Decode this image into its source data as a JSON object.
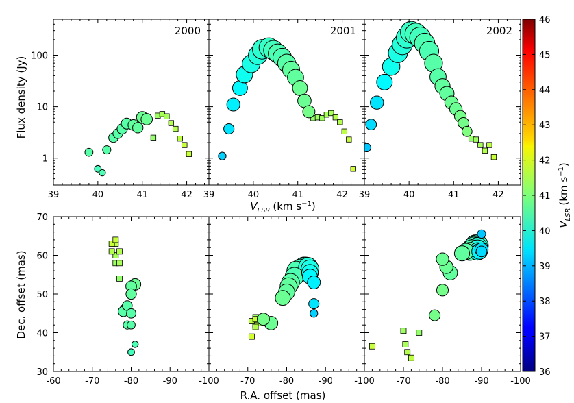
{
  "chart_data": [
    {
      "type": "scatter",
      "panel": "spectrum",
      "epoch": "2000",
      "xlim": [
        39,
        42.5
      ],
      "ylim_log": [
        0.3,
        500
      ],
      "circles": [
        {
          "v": 39.8,
          "f": 1.3,
          "c": 40.6
        },
        {
          "v": 40.0,
          "f": 0.62,
          "c": 40.4
        },
        {
          "v": 40.1,
          "f": 0.52,
          "c": 40.5
        },
        {
          "v": 40.2,
          "f": 1.45,
          "c": 40.6
        },
        {
          "v": 40.35,
          "f": 2.5,
          "c": 40.6
        },
        {
          "v": 40.45,
          "f": 3.0,
          "c": 40.6
        },
        {
          "v": 40.55,
          "f": 3.7,
          "c": 40.6
        },
        {
          "v": 40.65,
          "f": 4.7,
          "c": 40.6
        },
        {
          "v": 40.8,
          "f": 4.4,
          "c": 40.7
        },
        {
          "v": 40.9,
          "f": 3.9,
          "c": 40.7
        },
        {
          "v": 41.0,
          "f": 6.2,
          "c": 40.8
        },
        {
          "v": 41.1,
          "f": 5.7,
          "c": 40.8
        }
      ],
      "squares": [
        {
          "v": 41.25,
          "f": 2.5,
          "c": 41.2
        },
        {
          "v": 41.35,
          "f": 6.7,
          "c": 41.3
        },
        {
          "v": 41.45,
          "f": 7.2,
          "c": 41.4
        },
        {
          "v": 41.55,
          "f": 6.5,
          "c": 41.4
        },
        {
          "v": 41.65,
          "f": 4.8,
          "c": 41.5
        },
        {
          "v": 41.75,
          "f": 3.7,
          "c": 41.5
        },
        {
          "v": 41.85,
          "f": 2.4,
          "c": 41.6
        },
        {
          "v": 41.95,
          "f": 1.8,
          "c": 41.7
        },
        {
          "v": 42.05,
          "f": 1.2,
          "c": 41.7
        }
      ]
    },
    {
      "type": "scatter",
      "panel": "spectrum",
      "epoch": "2001",
      "xlim": [
        39,
        42.5
      ],
      "ylim_log": [
        0.3,
        500
      ],
      "circles": [
        {
          "v": 39.3,
          "f": 1.1,
          "c": 39.3
        },
        {
          "v": 39.45,
          "f": 3.7,
          "c": 39.5
        },
        {
          "v": 39.55,
          "f": 11,
          "c": 39.6
        },
        {
          "v": 39.7,
          "f": 23,
          "c": 39.7
        },
        {
          "v": 39.8,
          "f": 42,
          "c": 39.9
        },
        {
          "v": 39.95,
          "f": 68,
          "c": 40.0
        },
        {
          "v": 40.1,
          "f": 100,
          "c": 40.1
        },
        {
          "v": 40.2,
          "f": 130,
          "c": 40.2
        },
        {
          "v": 40.35,
          "f": 140,
          "c": 40.3
        },
        {
          "v": 40.45,
          "f": 125,
          "c": 40.4
        },
        {
          "v": 40.55,
          "f": 108,
          "c": 40.5
        },
        {
          "v": 40.65,
          "f": 90,
          "c": 40.5
        },
        {
          "v": 40.75,
          "f": 70,
          "c": 40.6
        },
        {
          "v": 40.85,
          "f": 52,
          "c": 40.7
        },
        {
          "v": 40.95,
          "f": 37,
          "c": 40.7
        },
        {
          "v": 41.05,
          "f": 23,
          "c": 40.8
        },
        {
          "v": 41.15,
          "f": 13,
          "c": 40.8
        },
        {
          "v": 41.25,
          "f": 8,
          "c": 40.9
        }
      ],
      "squares": [
        {
          "v": 41.35,
          "f": 6.0,
          "c": 41.2
        },
        {
          "v": 41.45,
          "f": 6.2,
          "c": 41.3
        },
        {
          "v": 41.55,
          "f": 6.0,
          "c": 41.3
        },
        {
          "v": 41.65,
          "f": 7.0,
          "c": 41.4
        },
        {
          "v": 41.75,
          "f": 7.5,
          "c": 41.4
        },
        {
          "v": 41.85,
          "f": 6.2,
          "c": 41.5
        },
        {
          "v": 41.95,
          "f": 5.0,
          "c": 41.5
        },
        {
          "v": 42.05,
          "f": 3.3,
          "c": 41.6
        },
        {
          "v": 42.15,
          "f": 2.3,
          "c": 41.7
        },
        {
          "v": 42.25,
          "f": 0.62,
          "c": 41.8
        }
      ]
    },
    {
      "type": "scatter",
      "panel": "spectrum",
      "epoch": "2002",
      "xlim": [
        39,
        42.5
      ],
      "ylim_log": [
        0.3,
        500
      ],
      "circles": [
        {
          "v": 39.05,
          "f": 1.6,
          "c": 39.2
        },
        {
          "v": 39.15,
          "f": 4.5,
          "c": 39.4
        },
        {
          "v": 39.28,
          "f": 12,
          "c": 39.5
        },
        {
          "v": 39.45,
          "f": 30,
          "c": 39.7
        },
        {
          "v": 39.6,
          "f": 60,
          "c": 39.9
        },
        {
          "v": 39.75,
          "f": 110,
          "c": 40.0
        },
        {
          "v": 39.85,
          "f": 160,
          "c": 40.1
        },
        {
          "v": 39.95,
          "f": 220,
          "c": 40.2
        },
        {
          "v": 40.05,
          "f": 280,
          "c": 40.3
        },
        {
          "v": 40.15,
          "f": 260,
          "c": 40.4
        },
        {
          "v": 40.25,
          "f": 220,
          "c": 40.4
        },
        {
          "v": 40.35,
          "f": 170,
          "c": 40.5
        },
        {
          "v": 40.45,
          "f": 120,
          "c": 40.5
        },
        {
          "v": 40.55,
          "f": 70,
          "c": 40.6
        },
        {
          "v": 40.65,
          "f": 38,
          "c": 40.6
        },
        {
          "v": 40.75,
          "f": 25,
          "c": 40.7
        },
        {
          "v": 40.85,
          "f": 18,
          "c": 40.7
        },
        {
          "v": 40.95,
          "f": 12,
          "c": 40.8
        },
        {
          "v": 41.05,
          "f": 9,
          "c": 40.8
        },
        {
          "v": 41.15,
          "f": 6.5,
          "c": 40.9
        },
        {
          "v": 41.22,
          "f": 4.8,
          "c": 40.9
        },
        {
          "v": 41.3,
          "f": 3.3,
          "c": 41.0
        }
      ],
      "squares": [
        {
          "v": 41.4,
          "f": 2.4,
          "c": 41.2
        },
        {
          "v": 41.5,
          "f": 2.3,
          "c": 41.3
        },
        {
          "v": 41.6,
          "f": 1.8,
          "c": 41.4
        },
        {
          "v": 41.7,
          "f": 1.4,
          "c": 41.5
        },
        {
          "v": 41.8,
          "f": 1.8,
          "c": 41.6
        },
        {
          "v": 41.9,
          "f": 1.05,
          "c": 41.7
        }
      ]
    },
    {
      "type": "scatter",
      "panel": "map",
      "epoch": "2000",
      "xlim": [
        -60,
        -100
      ],
      "ylim": [
        30,
        70
      ],
      "circles": [
        {
          "x": -81,
          "y": 37,
          "f": 0.52,
          "c": 40.5
        },
        {
          "x": -80,
          "y": 35,
          "f": 0.62,
          "c": 40.4
        },
        {
          "x": -80,
          "y": 42,
          "f": 1.3,
          "c": 40.6
        },
        {
          "x": -79,
          "y": 42,
          "f": 1.45,
          "c": 40.6
        },
        {
          "x": -80,
          "y": 45,
          "f": 2.5,
          "c": 40.6
        },
        {
          "x": -79,
          "y": 47,
          "f": 3.0,
          "c": 40.6
        },
        {
          "x": -78,
          "y": 45.5,
          "f": 3.7,
          "c": 40.6
        },
        {
          "x": -78.5,
          "y": 46,
          "f": 4.7,
          "c": 40.6
        },
        {
          "x": -80,
          "y": 52,
          "f": 4.4,
          "c": 40.7
        },
        {
          "x": -81,
          "y": 52.5,
          "f": 6.2,
          "c": 40.8
        },
        {
          "x": -80,
          "y": 50,
          "f": 3.9,
          "c": 40.7
        }
      ],
      "squares": [
        {
          "x": -77,
          "y": 54,
          "f": 2.5,
          "c": 41.2
        },
        {
          "x": -76,
          "y": 58,
          "f": 6.7,
          "c": 41.3
        },
        {
          "x": -77,
          "y": 58,
          "f": 7.2,
          "c": 41.4
        },
        {
          "x": -76,
          "y": 60,
          "f": 6.5,
          "c": 41.4
        },
        {
          "x": -77,
          "y": 61,
          "f": 4.8,
          "c": 41.5
        },
        {
          "x": -75,
          "y": 61,
          "f": 3.7,
          "c": 41.5
        },
        {
          "x": -76,
          "y": 63,
          "f": 2.4,
          "c": 41.6
        },
        {
          "x": -75,
          "y": 63,
          "f": 1.8,
          "c": 41.7
        },
        {
          "x": -76,
          "y": 64,
          "f": 1.2,
          "c": 41.7
        }
      ]
    },
    {
      "type": "scatter",
      "panel": "map",
      "epoch": "2001",
      "xlim": [
        -60,
        -100
      ],
      "ylim": [
        30,
        70
      ],
      "circles": [
        {
          "x": -87,
          "y": 45,
          "f": 1.1,
          "c": 39.3
        },
        {
          "x": -87,
          "y": 47.5,
          "f": 3.7,
          "c": 39.5
        },
        {
          "x": -87,
          "y": 53,
          "f": 11,
          "c": 39.6
        },
        {
          "x": -86,
          "y": 54.5,
          "f": 23,
          "c": 39.7
        },
        {
          "x": -86,
          "y": 55.5,
          "f": 42,
          "c": 39.9
        },
        {
          "x": -86,
          "y": 56.5,
          "f": 68,
          "c": 40.0
        },
        {
          "x": -85.5,
          "y": 57,
          "f": 100,
          "c": 40.1
        },
        {
          "x": -85,
          "y": 57,
          "f": 130,
          "c": 40.2
        },
        {
          "x": -84.5,
          "y": 57,
          "f": 140,
          "c": 40.3
        },
        {
          "x": -83.5,
          "y": 56.5,
          "f": 125,
          "c": 40.4
        },
        {
          "x": -82.5,
          "y": 56,
          "f": 108,
          "c": 40.5
        },
        {
          "x": -82,
          "y": 54.5,
          "f": 90,
          "c": 40.5
        },
        {
          "x": -81,
          "y": 53,
          "f": 70,
          "c": 40.6
        },
        {
          "x": -80.5,
          "y": 52,
          "f": 52,
          "c": 40.7
        },
        {
          "x": -80,
          "y": 50.5,
          "f": 37,
          "c": 40.7
        },
        {
          "x": -79,
          "y": 49,
          "f": 23,
          "c": 40.8
        },
        {
          "x": -76,
          "y": 42.5,
          "f": 13,
          "c": 40.8
        },
        {
          "x": -74,
          "y": 43.5,
          "f": 8,
          "c": 40.9
        }
      ],
      "squares": [
        {
          "x": -73,
          "y": 44,
          "f": 6.0,
          "c": 41.2
        },
        {
          "x": -72,
          "y": 44,
          "f": 6.2,
          "c": 41.3
        },
        {
          "x": -73,
          "y": 43.5,
          "f": 6.0,
          "c": 41.3
        },
        {
          "x": -72,
          "y": 43,
          "f": 7.0,
          "c": 41.4
        },
        {
          "x": -73,
          "y": 42.5,
          "f": 7.5,
          "c": 41.4
        },
        {
          "x": -72,
          "y": 42,
          "f": 6.2,
          "c": 41.5
        },
        {
          "x": -72,
          "y": 41.5,
          "f": 5.0,
          "c": 41.5
        },
        {
          "x": -71,
          "y": 43,
          "f": 3.3,
          "c": 41.6
        },
        {
          "x": -72,
          "y": 43.5,
          "f": 2.3,
          "c": 41.7
        },
        {
          "x": -71,
          "y": 39,
          "f": 0.62,
          "c": 41.8
        }
      ]
    },
    {
      "type": "scatter",
      "panel": "map",
      "epoch": "2002",
      "xlim": [
        -60,
        -100
      ],
      "ylim": [
        30,
        70
      ],
      "circles": [
        {
          "x": -90,
          "y": 65.5,
          "f": 1.6,
          "c": 39.2
        },
        {
          "x": -90,
          "y": 61,
          "f": 4.5,
          "c": 39.4
        },
        {
          "x": -90,
          "y": 61.5,
          "f": 12,
          "c": 39.5
        },
        {
          "x": -89.5,
          "y": 61,
          "f": 30,
          "c": 39.7
        },
        {
          "x": -89,
          "y": 61,
          "f": 60,
          "c": 39.9
        },
        {
          "x": -89,
          "y": 61.5,
          "f": 110,
          "c": 40.0
        },
        {
          "x": -89,
          "y": 62,
          "f": 160,
          "c": 40.1
        },
        {
          "x": -88.5,
          "y": 62,
          "f": 220,
          "c": 40.2
        },
        {
          "x": -88.5,
          "y": 62.5,
          "f": 280,
          "c": 40.3
        },
        {
          "x": -89,
          "y": 62.5,
          "f": 260,
          "c": 40.4
        },
        {
          "x": -88,
          "y": 62,
          "f": 220,
          "c": 40.4
        },
        {
          "x": -88,
          "y": 61.5,
          "f": 170,
          "c": 40.5
        },
        {
          "x": -87.5,
          "y": 61.5,
          "f": 120,
          "c": 40.5
        },
        {
          "x": -87,
          "y": 61,
          "f": 70,
          "c": 40.6
        },
        {
          "x": -86,
          "y": 61,
          "f": 38,
          "c": 40.6
        },
        {
          "x": -85,
          "y": 60.5,
          "f": 25,
          "c": 40.7
        },
        {
          "x": -82,
          "y": 55.5,
          "f": 18,
          "c": 40.7
        },
        {
          "x": -81,
          "y": 57,
          "f": 12,
          "c": 40.8
        },
        {
          "x": -80,
          "y": 59,
          "f": 9,
          "c": 40.8
        },
        {
          "x": -80,
          "y": 51,
          "f": 6.5,
          "c": 40.9
        },
        {
          "x": -78,
          "y": 44.5,
          "f": 4.8,
          "c": 40.9
        }
      ],
      "squares": [
        {
          "x": -74,
          "y": 40,
          "f": 2.4,
          "c": 41.2
        },
        {
          "x": -70,
          "y": 40.5,
          "f": 2.3,
          "c": 41.3
        },
        {
          "x": -70.5,
          "y": 37,
          "f": 1.8,
          "c": 41.4
        },
        {
          "x": -71,
          "y": 35,
          "f": 1.4,
          "c": 41.5
        },
        {
          "x": -72,
          "y": 33.5,
          "f": 1.8,
          "c": 41.6
        },
        {
          "x": -62,
          "y": 36.5,
          "f": 1.05,
          "c": 41.7
        }
      ]
    }
  ],
  "labels": {
    "epoch_2000": "2000",
    "epoch_2001": "2001",
    "epoch_2002": "2002",
    "ylabel_top": "Flux density (Jy)",
    "ylabel_bottom": "Dec. offset (mas)",
    "xlabel_top_V": "V",
    "xlabel_top_sub": "LSR",
    "xlabel_top_unit": "(km s",
    "xlabel_top_exp": "−1",
    "xlabel_top_close": ")",
    "xlabel_bottom": "R.A. offset (mas)",
    "colorbar_V": "V",
    "colorbar_sub": "LSR",
    "colorbar_unit": "(km s",
    "colorbar_exp": "−1",
    "colorbar_close": ")"
  },
  "ticks": {
    "top_x": [
      "39",
      "40",
      "41",
      "42"
    ],
    "top_y": [
      "1",
      "10",
      "100"
    ],
    "bottom_x": [
      "-60",
      "-70",
      "-80",
      "-90",
      "-100"
    ],
    "bottom_y": [
      "30",
      "40",
      "50",
      "60",
      "70"
    ],
    "colorbar": [
      "36",
      "37",
      "38",
      "39",
      "40",
      "41",
      "42",
      "43",
      "44",
      "45",
      "46"
    ]
  },
  "colorbar": {
    "min": 36,
    "max": 46,
    "colormap": "jet"
  },
  "colors": {
    "axis": "#000000",
    "marker_edge": "#000000",
    "background": "#ffffff"
  }
}
